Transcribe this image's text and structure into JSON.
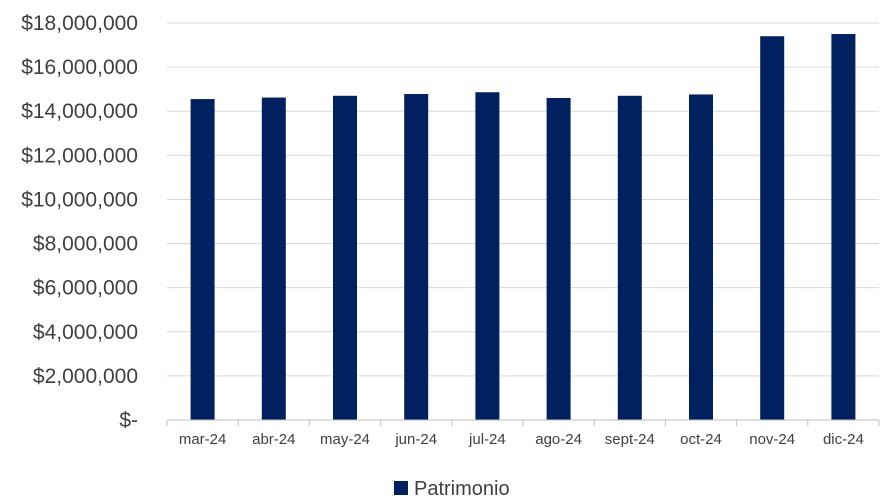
{
  "chart_data": {
    "type": "bar",
    "categories": [
      "mar-24",
      "abr-24",
      "may-24",
      "jun-24",
      "jul-24",
      "ago-24",
      "sept-24",
      "oct-24",
      "nov-24",
      "dic-24"
    ],
    "series": [
      {
        "name": "Patrimonio",
        "color": "#002060",
        "values": [
          14550000,
          14620000,
          14700000,
          14780000,
          14860000,
          14600000,
          14700000,
          14760000,
          17400000,
          17500000
        ]
      }
    ],
    "ylim": [
      0,
      18000000
    ],
    "yticks": [
      0,
      2000000,
      4000000,
      6000000,
      8000000,
      10000000,
      12000000,
      14000000,
      16000000,
      18000000
    ],
    "ytick_labels": [
      "$-",
      "$2,000,000",
      "$4,000,000",
      "$6,000,000",
      "$8,000,000",
      "$10,000,000",
      "$12,000,000",
      "$14,000,000",
      "$16,000,000",
      "$18,000,000"
    ],
    "grid": true,
    "legend_position": "bottom-center"
  }
}
